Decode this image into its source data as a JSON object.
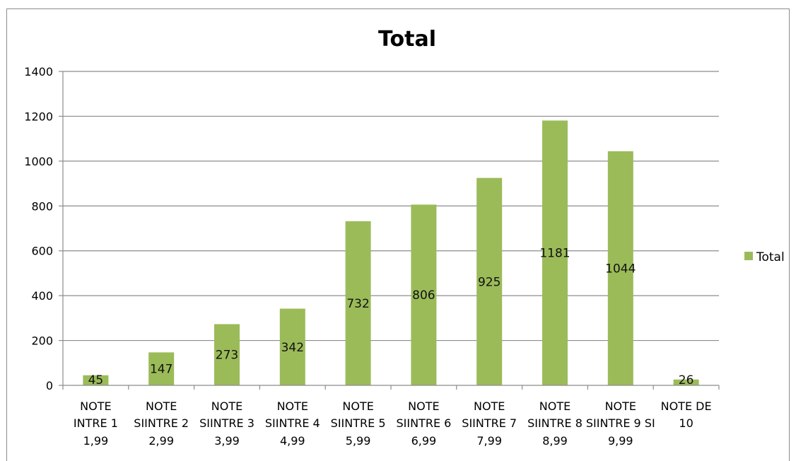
{
  "chart_data": {
    "type": "bar",
    "title": "Total",
    "xlabel": "",
    "ylabel": "",
    "ylim": [
      0,
      1400
    ],
    "yticks": [
      0,
      200,
      400,
      600,
      800,
      1000,
      1200,
      1400
    ],
    "grid": true,
    "legend_position": "right",
    "categories": [
      [
        "NOTE",
        "INTRE 1",
        "1,99"
      ],
      [
        "NOTE",
        "SIINTRE 2",
        "2,99"
      ],
      [
        "NOTE",
        "SIINTRE 3",
        "3,99"
      ],
      [
        "NOTE",
        "SIINTRE 4",
        "4,99"
      ],
      [
        "NOTE",
        "SIINTRE 5",
        "5,99"
      ],
      [
        "NOTE",
        "SIINTRE 6",
        "6,99"
      ],
      [
        "NOTE",
        "SIINTRE 7",
        "7,99"
      ],
      [
        "NOTE",
        "SIINTRE 8",
        "8,99"
      ],
      [
        "NOTE",
        "SIINTRE 9 SI",
        "9,99"
      ],
      [
        "NOTE DE",
        "10"
      ]
    ],
    "series": [
      {
        "name": "Total",
        "color": "#9bbb59",
        "values": [
          45,
          147,
          273,
          342,
          732,
          806,
          925,
          1181,
          1044,
          26
        ]
      }
    ]
  }
}
